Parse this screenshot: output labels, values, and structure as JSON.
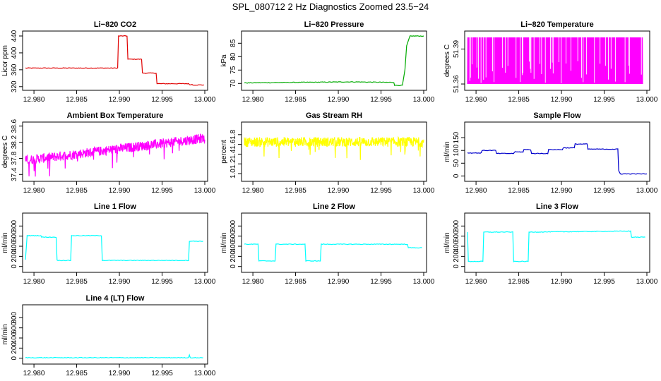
{
  "figure": {
    "title": "SPL_080712  2 Hz Diagnostics Zoomed 23.5−24"
  },
  "chart_data": [
    {
      "type": "line",
      "title": "Li−820 CO2",
      "ylabel": "Licor ppm",
      "color": "#e00000",
      "xlim": [
        12.979,
        13.0
      ],
      "ylim": [
        318,
        445
      ],
      "xticks": [
        12.98,
        12.985,
        12.99,
        12.995,
        13.0
      ],
      "xtick_labels": [
        "12.980",
        "12.985",
        "12.990",
        "12.995",
        "13.000"
      ],
      "yticks": [
        320,
        360,
        400,
        440
      ],
      "ytick_labels": [
        "320",
        "360",
        "400",
        "440"
      ],
      "series": [
        {
          "x": [
            12.979,
            12.9898,
            12.9899,
            12.9909,
            12.991,
            12.9926,
            12.9927,
            12.9943,
            12.9944,
            12.9981,
            12.9982,
            12.9985,
            12.9986,
            12.9999
          ],
          "y": [
            364,
            364,
            440,
            440,
            385,
            385,
            352,
            352,
            327,
            327,
            325,
            325,
            324,
            324
          ]
        }
      ]
    },
    {
      "type": "line",
      "title": "Li−820 Pressure",
      "ylabel": "kPa",
      "color": "#00aa00",
      "xlim": [
        12.979,
        13.0
      ],
      "ylim": [
        68.5,
        88.5
      ],
      "xticks": [
        12.98,
        12.985,
        12.99,
        12.995,
        13.0
      ],
      "xtick_labels": [
        "12.980",
        "12.985",
        "12.990",
        "12.995",
        "13.000"
      ],
      "yticks": [
        70,
        75,
        80,
        85
      ],
      "ytick_labels": [
        "70",
        "75",
        "80",
        "85"
      ],
      "series": [
        {
          "x": [
            12.979,
            12.9915,
            12.9965,
            12.9966,
            12.9975,
            12.9978,
            12.998,
            12.9984,
            13.0
          ],
          "y": [
            70.2,
            70.6,
            70.4,
            69.3,
            69.3,
            75,
            84,
            87.7,
            87.7
          ]
        }
      ]
    },
    {
      "type": "line",
      "title": "Li−820 Temperature",
      "ylabel": "degrees C",
      "color": "#ff00ff",
      "xlim": [
        12.979,
        13.0
      ],
      "ylim": [
        51.357,
        51.403
      ],
      "xticks": [
        12.98,
        12.985,
        12.99,
        12.995,
        13.0
      ],
      "xtick_labels": [
        "12.980",
        "12.985",
        "12.990",
        "12.995",
        "13.000"
      ],
      "yticks": [
        51.36,
        51.39
      ],
      "ytick_labels": [
        "51.36",
        "51.39"
      ],
      "series": [
        {
          "x": [
            12.979,
            12.9995
          ],
          "y_range": [
            51.36,
            51.4
          ],
          "style": "dense-oscillation"
        }
      ]
    },
    {
      "type": "line",
      "title": "Ambient Box Temperature",
      "ylabel": "degrees C",
      "color": "#ff00ff",
      "xlim": [
        12.979,
        13.0
      ],
      "ylim": [
        37.3,
        38.63
      ],
      "xticks": [
        12.98,
        12.985,
        12.99,
        12.995,
        13.0
      ],
      "xtick_labels": [
        "12.980",
        "12.985",
        "12.990",
        "12.995",
        "13.000"
      ],
      "yticks": [
        37.4,
        37.8,
        38.2,
        38.6
      ],
      "ytick_labels": [
        "37.4",
        "37.8",
        "38.2",
        "38.6"
      ],
      "series": [
        {
          "x": [
            12.979,
            13.0
          ],
          "y_trend": [
            37.75,
            38.3
          ],
          "noise": 0.12,
          "style": "noisy"
        }
      ]
    },
    {
      "type": "line",
      "title": "Gas Stream RH",
      "ylabel": "percent",
      "color": "#ffff00",
      "xlim": [
        12.979,
        13.0
      ],
      "ylim": [
        0.9,
        2.0
      ],
      "xticks": [
        12.98,
        12.985,
        12.99,
        12.995,
        13.0
      ],
      "xtick_labels": [
        "12.980",
        "12.985",
        "12.990",
        "12.995",
        "13.000"
      ],
      "yticks": [
        1.0,
        1.2,
        1.4,
        1.6,
        1.8
      ],
      "ytick_labels": [
        "1.0",
        "1.2",
        "1.4",
        "1.6",
        "1.8"
      ],
      "series": [
        {
          "x": [
            12.979,
            13.0
          ],
          "y_trend": [
            1.65,
            1.65
          ],
          "noise": 0.1,
          "style": "noisy"
        }
      ]
    },
    {
      "type": "line",
      "title": "Sample Flow",
      "ylabel": "ml/min",
      "color": "#0000cc",
      "xlim": [
        12.979,
        13.0
      ],
      "ylim": [
        -10,
        200
      ],
      "xticks": [
        12.98,
        12.985,
        12.99,
        12.995,
        13.0
      ],
      "xtick_labels": [
        "12.980",
        "12.985",
        "12.990",
        "12.995",
        "13.000"
      ],
      "yticks": [
        0,
        50,
        100,
        150
      ],
      "ytick_labels": [
        "0",
        "50",
        "100",
        "150"
      ],
      "series": [
        {
          "x": [
            12.979,
            12.9806,
            12.9807,
            12.9823,
            12.9824,
            12.9844,
            12.9845,
            12.9855,
            12.9856,
            12.9864,
            12.9865,
            12.9884,
            12.9885,
            12.9901,
            12.9902,
            12.9915,
            12.9916,
            12.993,
            12.9931,
            12.9966,
            12.9967,
            12.9969,
            13.0
          ],
          "y": [
            90,
            90,
            100,
            100,
            88,
            88,
            94,
            94,
            103,
            103,
            88,
            88,
            103,
            103,
            110,
            110,
            125,
            125,
            105,
            105,
            20,
            8,
            8
          ]
        }
      ]
    },
    {
      "type": "line",
      "title": "Line 1 Flow",
      "ylabel": "ml/min",
      "color": "#00ffff",
      "xlim": [
        12.979,
        13.0
      ],
      "ylim": [
        -60,
        1000
      ],
      "xticks": [
        12.98,
        12.985,
        12.99,
        12.995,
        13.0
      ],
      "xtick_labels": [
        "12.980",
        "12.985",
        "12.990",
        "12.995",
        "13.000"
      ],
      "yticks": [
        0,
        200,
        400,
        600,
        800
      ],
      "ytick_labels": [
        "0",
        "200",
        "400",
        "600",
        "800"
      ],
      "series": [
        {
          "x": [
            12.979,
            12.9792,
            12.9808,
            12.9809,
            12.9826,
            12.9827,
            12.9843,
            12.9844,
            12.9879,
            12.988,
            12.9981,
            12.9982,
            12.9998
          ],
          "y": [
            130,
            610,
            610,
            580,
            580,
            120,
            120,
            610,
            610,
            120,
            120,
            500,
            500
          ]
        }
      ]
    },
    {
      "type": "line",
      "title": "Line 2 Flow",
      "ylabel": "ml/min",
      "color": "#00ffff",
      "xlim": [
        12.979,
        13.0
      ],
      "ylim": [
        -60,
        1000
      ],
      "xticks": [
        12.98,
        12.985,
        12.99,
        12.995,
        13.0
      ],
      "xtick_labels": [
        "12.980",
        "12.985",
        "12.990",
        "12.995",
        "13.000"
      ],
      "yticks": [
        0,
        200,
        400,
        600,
        800
      ],
      "ytick_labels": [
        "0",
        "200",
        "400",
        "600",
        "800"
      ],
      "series": [
        {
          "x": [
            12.979,
            12.9806,
            12.9807,
            12.9826,
            12.9827,
            12.9861,
            12.9862,
            12.9879,
            12.988,
            12.9981,
            12.9982,
            12.9998
          ],
          "y": [
            440,
            440,
            110,
            110,
            440,
            440,
            110,
            110,
            440,
            440,
            370,
            370
          ]
        }
      ]
    },
    {
      "type": "line",
      "title": "Line 3 Flow",
      "ylabel": "ml/min",
      "color": "#00ffff",
      "xlim": [
        12.979,
        13.0
      ],
      "ylim": [
        -60,
        1000
      ],
      "xticks": [
        12.98,
        12.985,
        12.99,
        12.995,
        13.0
      ],
      "xtick_labels": [
        "12.980",
        "12.985",
        "12.990",
        "12.995",
        "13.000"
      ],
      "yticks": [
        0,
        200,
        400,
        600,
        800
      ],
      "ytick_labels": [
        "0",
        "200",
        "400",
        "600",
        "800"
      ],
      "series": [
        {
          "x": [
            12.979,
            12.9791,
            12.9808,
            12.9809,
            12.9843,
            12.9844,
            12.9861,
            12.9862,
            12.9981,
            12.9982,
            12.9998
          ],
          "y": [
            680,
            100,
            100,
            680,
            680,
            100,
            100,
            680,
            700,
            580,
            580
          ]
        }
      ]
    },
    {
      "type": "line",
      "title": "Line 4 (LT) Flow",
      "ylabel": "ml/min",
      "color": "#00ffff",
      "xlim": [
        12.979,
        13.0
      ],
      "ylim": [
        -60,
        1000
      ],
      "xticks": [
        12.98,
        12.985,
        12.99,
        12.995,
        13.0
      ],
      "xtick_labels": [
        "12.980",
        "12.985",
        "12.990",
        "12.995",
        "13.000"
      ],
      "yticks": [
        0,
        200,
        400,
        600,
        800
      ],
      "ytick_labels": [
        "0",
        "200",
        "400",
        "600",
        "800"
      ],
      "series": [
        {
          "x": [
            12.979,
            12.9981,
            12.9982,
            12.9983,
            12.9984,
            12.9998
          ],
          "y": [
            10,
            10,
            70,
            10,
            10,
            10
          ]
        }
      ]
    }
  ]
}
